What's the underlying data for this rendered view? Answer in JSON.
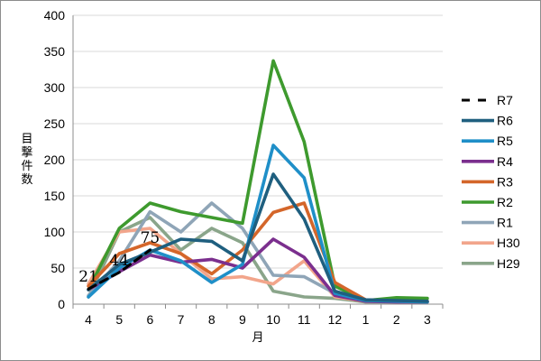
{
  "chart_data": {
    "type": "line",
    "ylabel": "目撃件数",
    "xlabel": "月",
    "categories": [
      "4",
      "5",
      "6",
      "7",
      "8",
      "9",
      "10",
      "11",
      "12",
      "1",
      "2",
      "3"
    ],
    "ylim": [
      0,
      400
    ],
    "yticks": [
      0,
      50,
      100,
      150,
      200,
      250,
      300,
      350,
      400
    ],
    "grid": true,
    "legend_position": "right",
    "series": [
      {
        "name": "R7",
        "color": "#000000",
        "dashed": true,
        "values": [
          21,
          44,
          75,
          null,
          null,
          null,
          null,
          null,
          null,
          null,
          null,
          null
        ]
      },
      {
        "name": "R6",
        "color": "#1f5f7f",
        "values": [
          20,
          55,
          72,
          90,
          87,
          60,
          180,
          118,
          18,
          6,
          5,
          4
        ]
      },
      {
        "name": "R5",
        "color": "#1f8fc8",
        "values": [
          10,
          50,
          75,
          60,
          30,
          55,
          220,
          175,
          15,
          5,
          4,
          3
        ]
      },
      {
        "name": "R4",
        "color": "#7b2f8e",
        "values": [
          20,
          45,
          68,
          58,
          62,
          50,
          90,
          65,
          12,
          4,
          3,
          3
        ]
      },
      {
        "name": "R3",
        "color": "#d4662a",
        "values": [
          25,
          70,
          85,
          70,
          42,
          75,
          127,
          140,
          30,
          6,
          4,
          4
        ]
      },
      {
        "name": "R2",
        "color": "#3e9a2e",
        "values": [
          20,
          105,
          140,
          128,
          120,
          112,
          337,
          225,
          25,
          5,
          9,
          8
        ]
      },
      {
        "name": "R1",
        "color": "#8fa5b7",
        "values": [
          12,
          60,
          128,
          100,
          140,
          105,
          40,
          38,
          15,
          5,
          4,
          3
        ]
      },
      {
        "name": "H30",
        "color": "#f2a58b",
        "values": [
          28,
          100,
          105,
          70,
          35,
          38,
          28,
          60,
          10,
          4,
          3,
          3
        ]
      },
      {
        "name": "H29",
        "color": "#8aa58a",
        "values": [
          10,
          100,
          120,
          75,
          105,
          85,
          18,
          10,
          8,
          3,
          3,
          3
        ]
      }
    ],
    "data_labels": [
      {
        "series": "R7",
        "index": 0,
        "text": "21"
      },
      {
        "series": "R7",
        "index": 1,
        "text": "44"
      },
      {
        "series": "R7",
        "index": 2,
        "text": "75"
      }
    ]
  }
}
